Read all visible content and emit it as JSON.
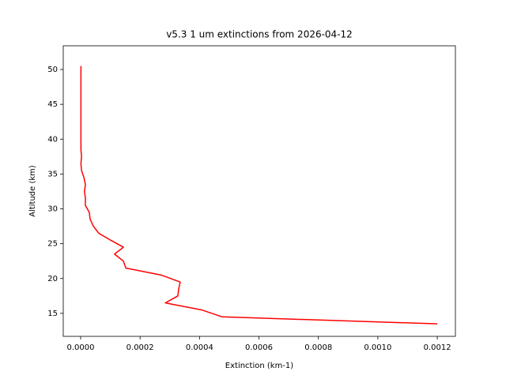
{
  "chart_data": {
    "type": "line",
    "title": "v5.3 1 um extinctions from 2026-04-12",
    "xlabel": "Extinction (km-1)",
    "ylabel": "Altitude (km)",
    "color": "#ff0000",
    "x": [
      0.0012,
      0.000476,
      0.000407,
      0.000285,
      0.000327,
      0.00033,
      0.000335,
      0.000271,
      0.000152,
      0.000144,
      0.000114,
      0.000144,
      0.000101,
      6.1e-05,
      4.3e-05,
      3.2e-05,
      2.9e-05,
      1.6e-05,
      1.6e-05,
      1.3e-05,
      1.6e-05,
      1.1e-05,
      3e-06,
      1e-06,
      3e-06,
      1e-06,
      1e-06,
      1e-06,
      1e-06,
      1e-06,
      1e-06,
      1e-06,
      1e-06,
      1e-06,
      1e-06,
      1e-06,
      1e-06,
      1e-06
    ],
    "values": [
      13.5,
      14.5,
      15.5,
      16.5,
      17.5,
      18.5,
      19.5,
      20.5,
      21.5,
      22.5,
      23.5,
      24.5,
      25.5,
      26.5,
      27.5,
      28.5,
      29.5,
      30.5,
      31.5,
      32.5,
      33.5,
      34.5,
      35.5,
      36.5,
      37.5,
      38.5,
      39.5,
      40.5,
      41.5,
      42.5,
      43.5,
      44.5,
      45.5,
      46.5,
      47.5,
      48.5,
      49.5,
      50.5
    ],
    "xlim": [
      -5.85e-05,
      0.001261
    ],
    "ylim": [
      11.7,
      53.4
    ],
    "xticks": [
      {
        "value": 0,
        "label": "0.0000"
      },
      {
        "value": 0.0002,
        "label": "0.0002"
      },
      {
        "value": 0.0004,
        "label": "0.0004"
      },
      {
        "value": 0.0006,
        "label": "0.0006"
      },
      {
        "value": 0.0008,
        "label": "0.0008"
      },
      {
        "value": 0.001,
        "label": "0.0010"
      },
      {
        "value": 0.0012,
        "label": "0.0012"
      }
    ],
    "yticks": [
      15,
      20,
      25,
      30,
      35,
      40,
      45,
      50
    ]
  }
}
